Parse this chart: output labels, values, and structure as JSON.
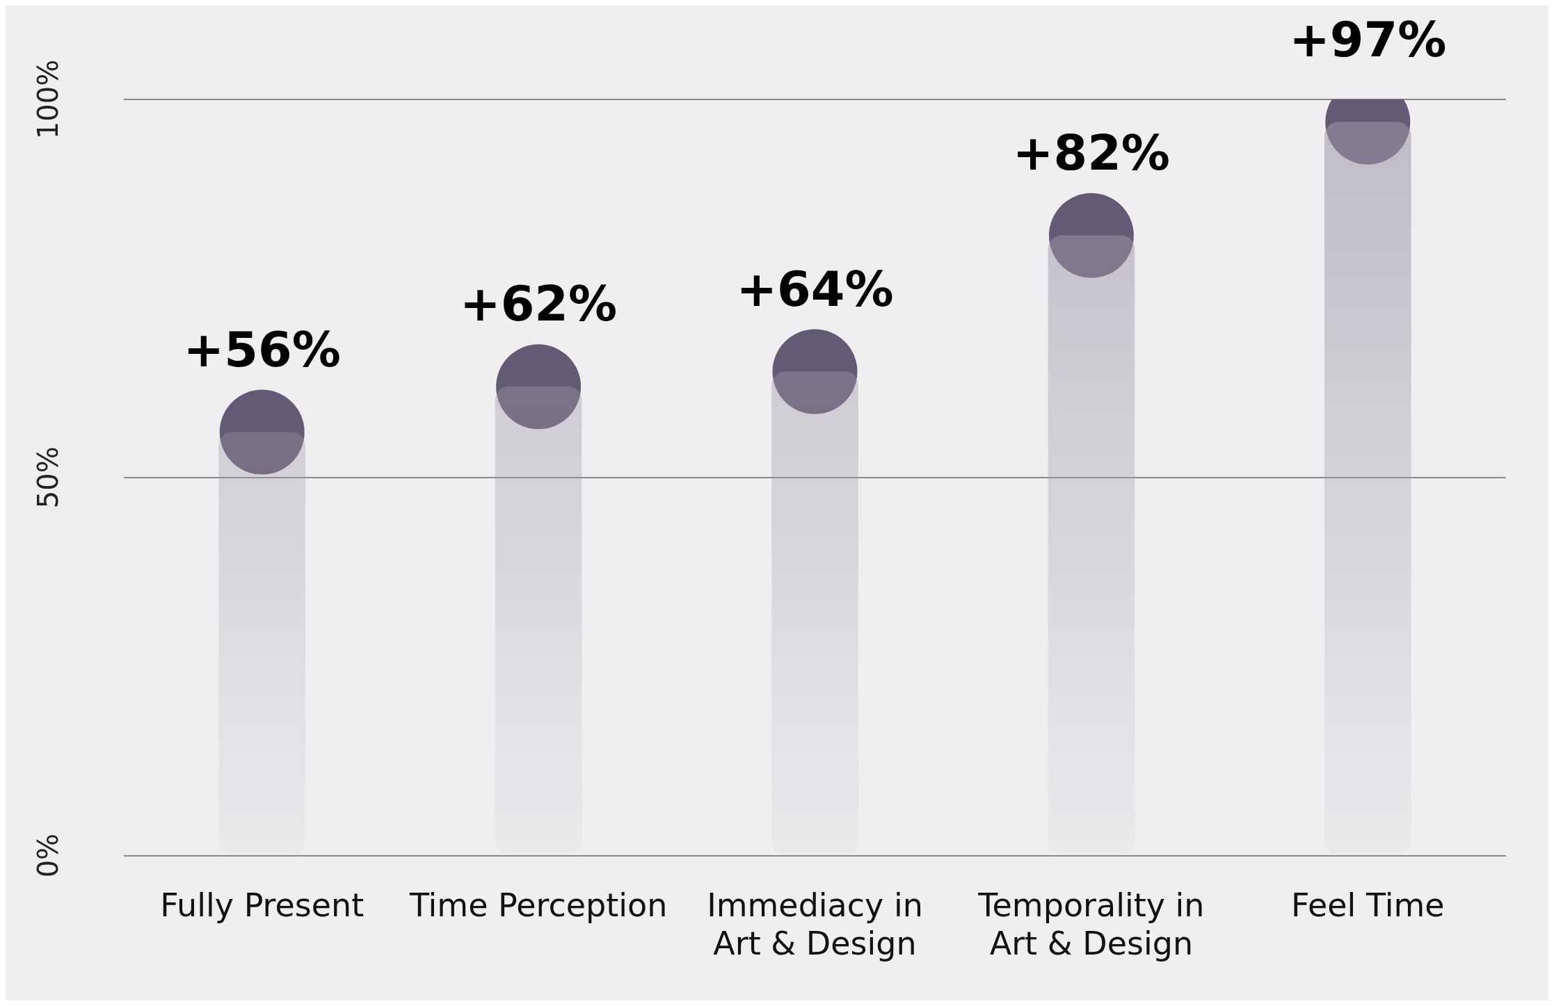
{
  "chart_data": {
    "type": "bar",
    "categories": [
      "Fully Present",
      "Time Perception",
      "Immediacy in Art & Design",
      "Temporality in Art & Design",
      "Feel Time"
    ],
    "series": [
      {
        "type": "bar",
        "color": "#9e97a8",
        "values": [
          56,
          62,
          64,
          82,
          97
        ]
      },
      {
        "type": "scatter",
        "color": "#655a75",
        "values": [
          56,
          62,
          64,
          82,
          97
        ],
        "value_labels": [
          "+56%",
          "+62%",
          "+64%",
          "+82%",
          "+97%"
        ]
      }
    ],
    "ylim": [
      0,
      100
    ],
    "yticks": [
      {
        "value": 0,
        "label": "0%"
      },
      {
        "value": 50,
        "label": "50%"
      },
      {
        "value": 100,
        "label": "100%"
      }
    ],
    "grid": "y",
    "legend": false,
    "marker": "circle"
  }
}
